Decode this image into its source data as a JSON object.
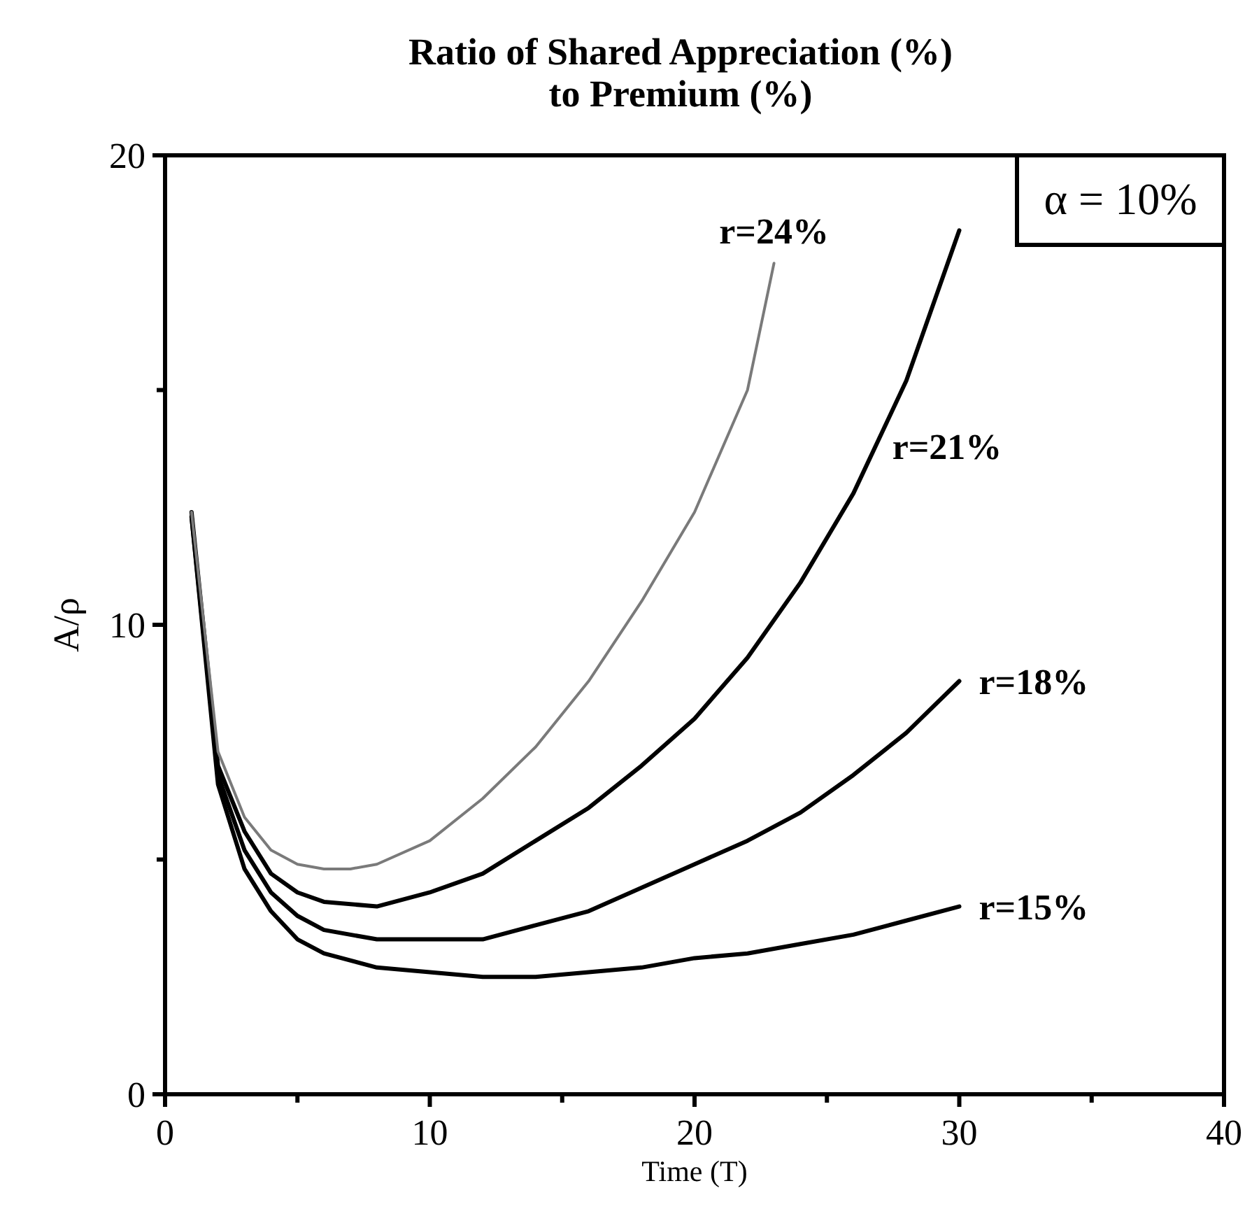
{
  "chart_data": {
    "type": "line",
    "title": "Ratio of Shared Appreciation (%)\nto Premium (%)",
    "xlabel": "Time (T)",
    "ylabel": "A/ρ",
    "xlim": [
      0,
      40
    ],
    "xticks": [
      0,
      {
        "value": 5,
        "label": null
      },
      10,
      {
        "value": 15,
        "label": null
      },
      20,
      {
        "value": 25,
        "label": null
      },
      30,
      {
        "value": 35,
        "label": null
      },
      40
    ],
    "ylim": [
      0,
      20
    ],
    "yticks": [
      0,
      {
        "value": 5,
        "label": null
      },
      10,
      {
        "value": 15,
        "label": null
      },
      20
    ],
    "grid": false,
    "marker": "none",
    "series": [
      {
        "name": "r=15%",
        "color": "#000000",
        "x": [
          1,
          2,
          3,
          4,
          5,
          6,
          8,
          10,
          12,
          14,
          16,
          18,
          20,
          22,
          24,
          26,
          28,
          30
        ],
        "values": [
          12.3,
          6.6,
          4.8,
          3.9,
          3.3,
          3.0,
          2.7,
          2.6,
          2.5,
          2.5,
          2.6,
          2.7,
          2.9,
          3.0,
          3.2,
          3.4,
          3.7,
          4.0
        ]
      },
      {
        "name": "r=18%",
        "color": "#000000",
        "x": [
          1,
          2,
          3,
          4,
          5,
          6,
          8,
          10,
          12,
          14,
          16,
          18,
          20,
          22,
          24,
          26,
          28,
          30
        ],
        "values": [
          12.3,
          6.8,
          5.2,
          4.3,
          3.8,
          3.5,
          3.3,
          3.3,
          3.3,
          3.6,
          3.9,
          4.4,
          4.9,
          5.4,
          6.0,
          6.8,
          7.7,
          8.8
        ]
      },
      {
        "name": "r=21%",
        "color": "#000000",
        "x": [
          1,
          2,
          3,
          4,
          5,
          6,
          8,
          10,
          12,
          14,
          16,
          18,
          20,
          22,
          24,
          26,
          28,
          30
        ],
        "values": [
          12.4,
          7.0,
          5.6,
          4.7,
          4.3,
          4.1,
          4.0,
          4.3,
          4.7,
          5.4,
          6.1,
          7.0,
          8.0,
          9.3,
          10.9,
          12.8,
          15.2,
          18.4
        ]
      },
      {
        "name": "r=24%",
        "color": "#7a7a7a",
        "x": [
          1,
          2,
          3,
          4,
          5,
          6,
          7,
          8,
          10,
          12,
          14,
          16,
          18,
          20,
          22,
          23
        ],
        "values": [
          12.4,
          7.3,
          5.9,
          5.2,
          4.9,
          4.8,
          4.8,
          4.9,
          5.4,
          6.3,
          7.4,
          8.8,
          10.5,
          12.4,
          15.0,
          17.7
        ]
      }
    ],
    "annotations": [
      "α = 10%"
    ]
  }
}
